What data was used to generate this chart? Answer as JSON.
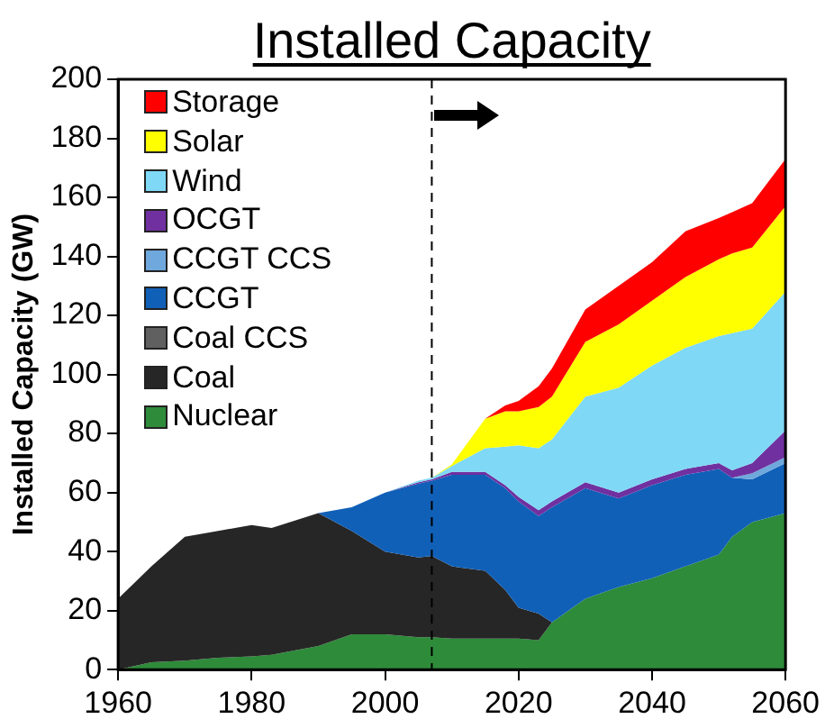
{
  "chart_data": {
    "type": "area",
    "title": "Installed Capacity",
    "ylabel": "Installed Capacity (GW)",
    "stacked": true,
    "x": [
      1960,
      1965,
      1970,
      1975,
      1980,
      1983,
      1990,
      1995,
      2000,
      2005,
      2007,
      2010,
      2015,
      2018,
      2020,
      2023,
      2025,
      2030,
      2035,
      2040,
      2045,
      2050,
      2052,
      2055,
      2060
    ],
    "series": [
      {
        "name": "Nuclear",
        "color": "#2e8b3a",
        "values": [
          0,
          2.5,
          3,
          4,
          4.5,
          5,
          8,
          12,
          12,
          11,
          11,
          10.5,
          10.5,
          10.5,
          10.5,
          10,
          16,
          24,
          28,
          31,
          35,
          39,
          45,
          50,
          53
        ]
      },
      {
        "name": "Coal",
        "color": "#262626",
        "values": [
          24,
          32.5,
          42,
          43,
          44.5,
          43,
          45,
          35,
          28,
          27,
          27.5,
          24.5,
          23,
          16.5,
          10.5,
          9,
          0,
          null,
          null,
          null,
          null,
          null,
          null,
          null,
          null
        ]
      },
      {
        "name": "Coal CCS",
        "color": "#606060",
        "values": [
          null,
          null,
          null,
          null,
          null,
          null,
          null,
          null,
          null,
          null,
          null,
          null,
          null,
          null,
          null,
          null,
          null,
          null,
          null,
          null,
          null,
          null,
          null,
          null,
          null
        ]
      },
      {
        "name": "CCGT",
        "color": "#1060b8",
        "values": [
          null,
          null,
          null,
          null,
          null,
          null,
          0,
          8,
          20,
          25,
          25.5,
          31,
          32.5,
          34.5,
          36,
          33,
          39,
          37.5,
          30,
          31.5,
          31,
          29,
          20,
          14.5,
          17
        ]
      },
      {
        "name": "CCGT CCS",
        "color": "#6fa8dc",
        "values": [
          null,
          null,
          null,
          null,
          null,
          null,
          null,
          null,
          null,
          null,
          null,
          null,
          null,
          null,
          null,
          null,
          null,
          null,
          null,
          null,
          null,
          null,
          0,
          2,
          2
        ]
      },
      {
        "name": "OCGT",
        "color": "#7030a0",
        "values": [
          null,
          null,
          null,
          null,
          null,
          null,
          null,
          null,
          0,
          0.5,
          0.5,
          1,
          1,
          1,
          1.5,
          2,
          2,
          2,
          2,
          2,
          2,
          2,
          2.5,
          3.5,
          9
        ]
      },
      {
        "name": "Wind",
        "color": "#7fd8f5",
        "values": [
          null,
          null,
          null,
          null,
          null,
          null,
          null,
          null,
          0,
          0.5,
          0.5,
          2,
          8,
          13,
          17.5,
          21,
          21,
          29,
          35.5,
          38.5,
          41,
          43,
          46.5,
          45.5,
          47
        ]
      },
      {
        "name": "Solar",
        "color": "#ffff00",
        "values": [
          null,
          null,
          null,
          null,
          null,
          null,
          null,
          null,
          null,
          null,
          0,
          0.5,
          10,
          12,
          11.5,
          14,
          14.5,
          18.5,
          21.5,
          22,
          24,
          26,
          27,
          27.5,
          29
        ]
      },
      {
        "name": "Storage",
        "color": "#ff0000",
        "values": [
          null,
          null,
          null,
          null,
          null,
          null,
          null,
          null,
          null,
          null,
          null,
          null,
          0,
          2,
          3.5,
          7,
          9.5,
          11,
          13,
          13,
          15.5,
          14,
          14,
          15,
          16
        ]
      }
    ],
    "xlim": [
      1960,
      2060
    ],
    "xticks": [
      1960,
      1980,
      2000,
      2020,
      2040,
      2060
    ],
    "ylim": [
      0,
      200
    ],
    "yticks": [
      0,
      20,
      40,
      60,
      80,
      100,
      120,
      140,
      160,
      180,
      200
    ],
    "ref_lines": [
      {
        "axis": "x",
        "value": 2007,
        "line_style": "dashed",
        "color": "#000000"
      }
    ],
    "legend": "top left",
    "grid": false
  }
}
